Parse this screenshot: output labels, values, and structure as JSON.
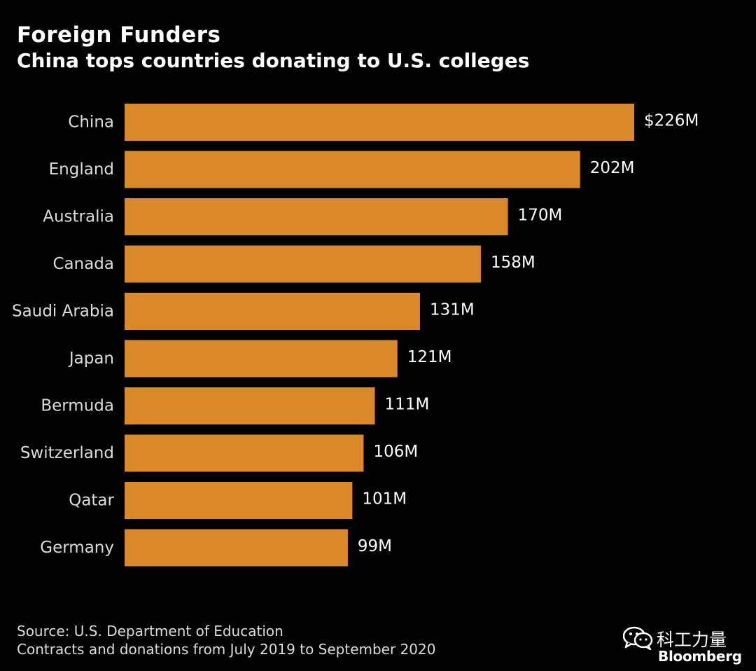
{
  "header": {
    "title": "Foreign Funders",
    "subtitle": "China tops countries donating to U.S. colleges"
  },
  "chart_data": {
    "type": "bar",
    "orientation": "horizontal",
    "title": "Foreign Funders",
    "subtitle": "China tops countries donating to U.S. colleges",
    "categories": [
      "China",
      "England",
      "Australia",
      "Canada",
      "Saudi Arabia",
      "Japan",
      "Bermuda",
      "Switzerland",
      "Qatar",
      "Germany"
    ],
    "values": [
      226,
      202,
      170,
      158,
      131,
      121,
      111,
      106,
      101,
      99
    ],
    "value_labels": [
      "$226M",
      "202M",
      "170M",
      "158M",
      "131M",
      "121M",
      "111M",
      "106M",
      "101M",
      "99M"
    ],
    "unit": "millions USD",
    "xlim": [
      0,
      226
    ],
    "grid": false,
    "legend": "none",
    "bar_color": "#d9892a",
    "label_color": "#dcdcdc",
    "value_color": "#ffffff"
  },
  "footer": {
    "source": "Source: U.S. Department of Education",
    "note": "Contracts and donations from July 2019 to September 2020"
  },
  "watermark": {
    "icon": "wechat-icon",
    "text": "科工力量",
    "brand": "Bloomberg"
  },
  "colors": {
    "background": "#000000",
    "bar": "#d9892a",
    "text": "#ffffff"
  }
}
